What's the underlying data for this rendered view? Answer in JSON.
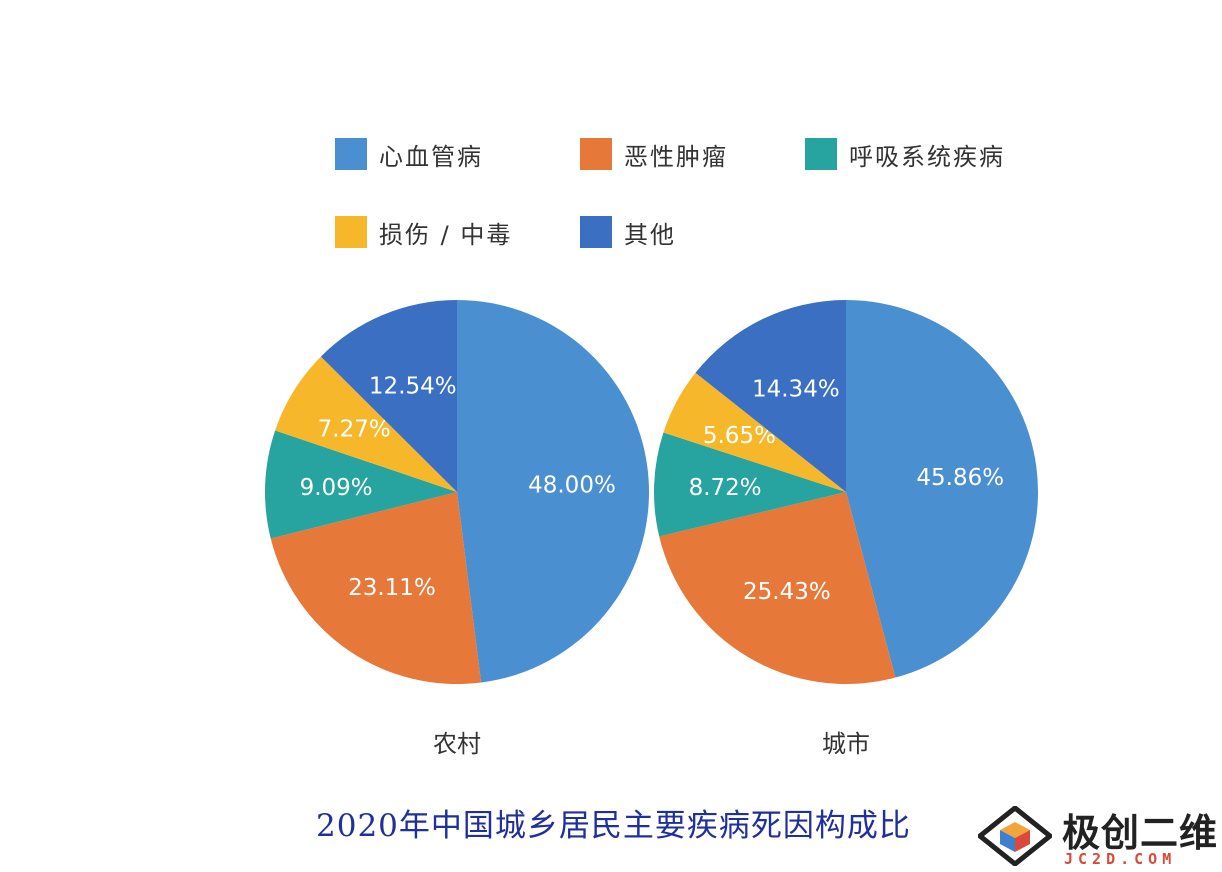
{
  "chart_data": [
    {
      "type": "pie",
      "title": "农村",
      "categories": [
        "心血管病",
        "恶性肿瘤",
        "呼吸系统疾病",
        "损伤 / 中毒",
        "其他"
      ],
      "values": [
        48.0,
        23.11,
        9.09,
        7.27,
        12.54
      ],
      "labels": [
        "48.00%",
        "23.11%",
        "9.09%",
        "7.27%",
        "12.54%"
      ]
    },
    {
      "type": "pie",
      "title": "城市",
      "categories": [
        "心血管病",
        "恶性肿瘤",
        "呼吸系统疾病",
        "损伤 / 中毒",
        "其他"
      ],
      "values": [
        45.86,
        25.43,
        8.72,
        5.65,
        14.34
      ],
      "labels": [
        "45.86%",
        "25.43%",
        "8.72%",
        "5.65%",
        "14.34%"
      ]
    }
  ],
  "legend": {
    "items": [
      {
        "label": "心血管病",
        "color": "#4a8fcf"
      },
      {
        "label": "恶性肿瘤",
        "color": "#e6793a"
      },
      {
        "label": "呼吸系统疾病",
        "color": "#27a3a0"
      },
      {
        "label": "损伤 / 中毒",
        "color": "#f6b82a"
      },
      {
        "label": "其他",
        "color": "#3a6fc1"
      }
    ]
  },
  "main_title": "2020年中国城乡居民主要疾病死因构成比",
  "watermark": {
    "text": "极创二维",
    "sub": "JC2D.COM"
  }
}
